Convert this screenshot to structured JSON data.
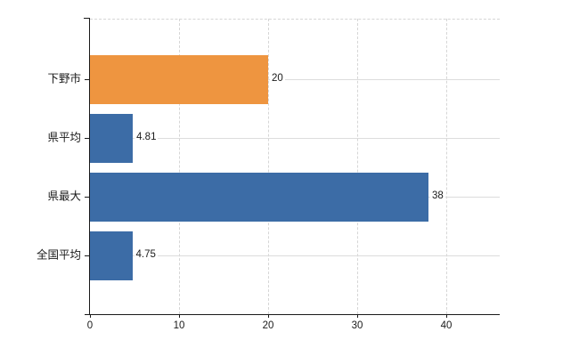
{
  "chart_data": {
    "type": "bar",
    "orientation": "horizontal",
    "title": "",
    "xlabel": "",
    "ylabel": "",
    "categories": [
      "下野市",
      "県平均",
      "県最大",
      "全国平均"
    ],
    "values": [
      20,
      4.81,
      38,
      4.75
    ],
    "value_labels": [
      "20",
      "4.81",
      "38",
      "4.75"
    ],
    "bar_colors": [
      "#ee9540",
      "#3c6ca6",
      "#3c6ca6",
      "#3c6ca6"
    ],
    "x_ticks": [
      0,
      10,
      20,
      30,
      40
    ],
    "xlim": [
      0,
      46
    ],
    "grid": true,
    "legend": false,
    "gridline_style": "dashed-vertical, solid-horizontal-at-category-centers",
    "colors": {
      "orange_bar": "#ee9540",
      "blue_bar": "#3c6ca6",
      "axis": "#1a1a1a",
      "gridline": "#d6d6d6",
      "text": "#1a1a1a",
      "background": "#ffffff"
    }
  }
}
